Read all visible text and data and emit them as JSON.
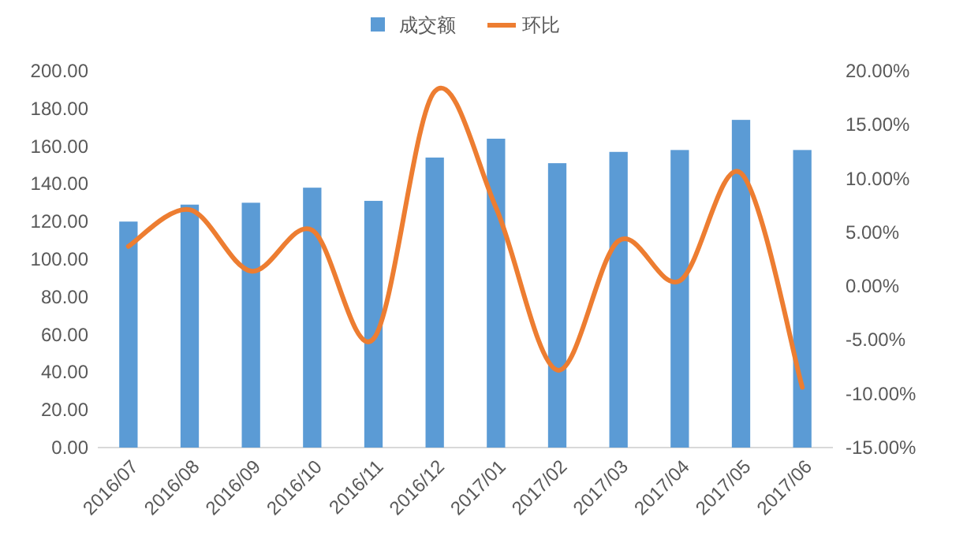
{
  "chart_data": {
    "type": "bar",
    "categories": [
      "2016/07",
      "2016/08",
      "2016/09",
      "2016/10",
      "2016/11",
      "2016/12",
      "2017/01",
      "2017/02",
      "2017/03",
      "2017/04",
      "2017/05",
      "2017/06"
    ],
    "series": [
      {
        "name": "成交额",
        "color": "#5b9bd5",
        "values": [
          120,
          129,
          130,
          138,
          131,
          154,
          164,
          151,
          157,
          158,
          174,
          158
        ]
      },
      {
        "name": "环比",
        "type": "line",
        "axis": "y2",
        "color": "#ed7d31",
        "values": [
          3.7,
          7.1,
          1.4,
          5.2,
          -4.9,
          18.1,
          7.3,
          -7.8,
          4.2,
          0.5,
          10.5,
          -9.4
        ]
      }
    ],
    "ylim": [
      0,
      200
    ],
    "yticks": [
      {
        "value": 0,
        "label": "0.00"
      },
      {
        "value": 20,
        "label": "20.00"
      },
      {
        "value": 40,
        "label": "40.00"
      },
      {
        "value": 60,
        "label": "60.00"
      },
      {
        "value": 80,
        "label": "80.00"
      },
      {
        "value": 100,
        "label": "100.00"
      },
      {
        "value": 120,
        "label": "120.00"
      },
      {
        "value": 140,
        "label": "140.00"
      },
      {
        "value": 160,
        "label": "160.00"
      },
      {
        "value": 180,
        "label": "180.00"
      },
      {
        "value": 200,
        "label": "200.00"
      }
    ],
    "y2lim": [
      -15,
      20
    ],
    "y2ticks": [
      {
        "value": -15,
        "label": "-15.00%"
      },
      {
        "value": -10,
        "label": "-10.00%"
      },
      {
        "value": -5,
        "label": "-5.00%"
      },
      {
        "value": 0,
        "label": "0.00%"
      },
      {
        "value": 5,
        "label": "5.00%"
      },
      {
        "value": 10,
        "label": "10.00%"
      },
      {
        "value": 15,
        "label": "15.00%"
      },
      {
        "value": 20,
        "label": "20.00%"
      }
    ],
    "legend": "top",
    "grid": false,
    "marker": "none",
    "line_style": "solid"
  }
}
